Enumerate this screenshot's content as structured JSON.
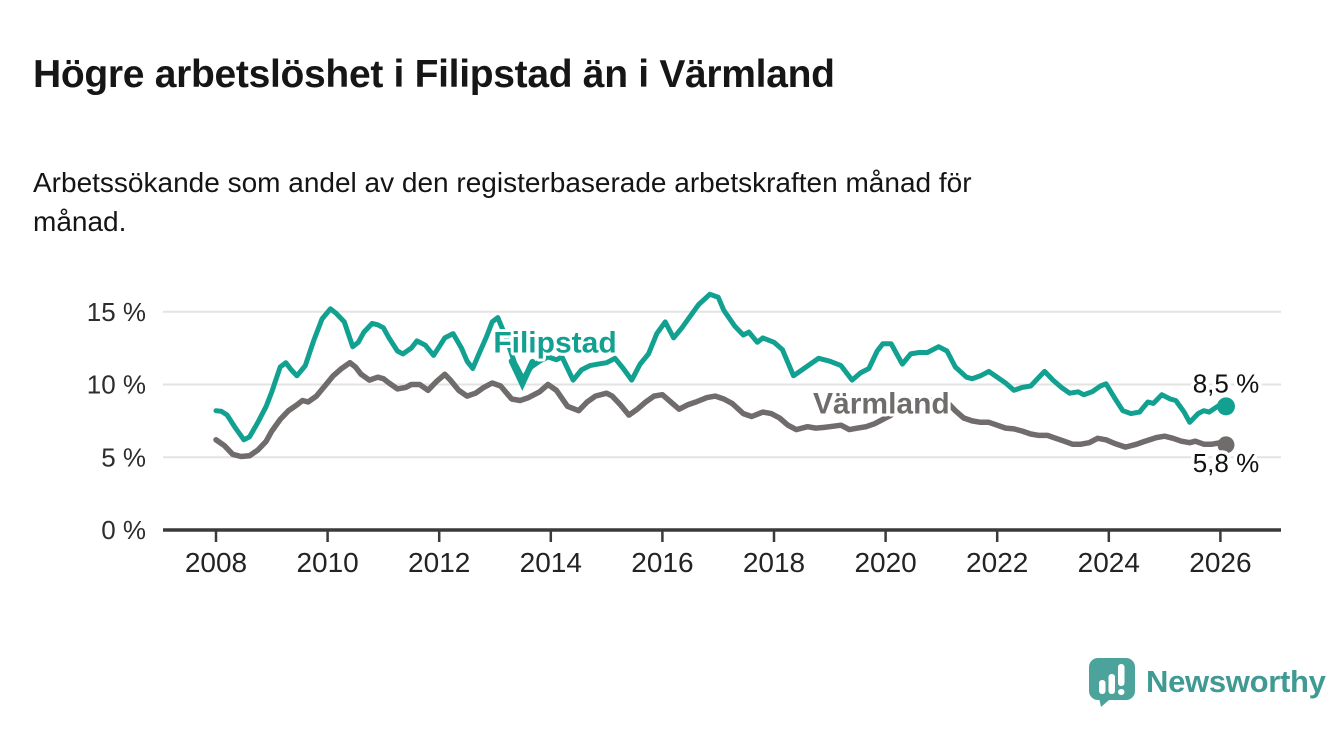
{
  "header": {
    "title": "Högre arbetslöshet i Filipstad än i Värmland",
    "subtitle": "Arbetssökande som andel av den registerbaserade arbetskraften månad för månad."
  },
  "footer": {
    "brand": "Newsworthy",
    "logo_icon": "bar-chart-speech-bubble-icon",
    "logo_color": "#4ba39c"
  },
  "colors": {
    "filipstad": "#12a091",
    "varmland": "#706c6b",
    "gridline": "#e3e3e3",
    "axis": "#3a3a3a",
    "text": "#161616"
  },
  "chart_data": {
    "type": "line",
    "title": "Högre arbetslöshet i Filipstad än i Värmland",
    "subtitle": "Arbetssökande som andel av den registerbaserade arbetskraften månad för månad.",
    "xlim": [
      2007.05,
      2027.1
    ],
    "ylim": [
      0,
      17.3
    ],
    "grid": "horizontal",
    "legend": "inline-annotations",
    "y_ticks": [
      {
        "value": 0,
        "label": "0 %"
      },
      {
        "value": 5,
        "label": "5 %"
      },
      {
        "value": 10,
        "label": "10 %"
      },
      {
        "value": 15,
        "label": "15 %"
      }
    ],
    "x_ticks": [
      {
        "value": 2008,
        "label": "2008"
      },
      {
        "value": 2010,
        "label": "2010"
      },
      {
        "value": 2012,
        "label": "2012"
      },
      {
        "value": 2014,
        "label": "2014"
      },
      {
        "value": 2016,
        "label": "2016"
      },
      {
        "value": 2018,
        "label": "2018"
      },
      {
        "value": 2020,
        "label": "2020"
      },
      {
        "value": 2022,
        "label": "2022"
      },
      {
        "value": 2024,
        "label": "2024"
      },
      {
        "value": 2026,
        "label": "2026"
      }
    ],
    "series": [
      {
        "name": "Filipstad",
        "color": "#12a091",
        "line_width": 5,
        "end_dot_radius": 9,
        "end_label": "8,5 %",
        "end_label_side": "above",
        "points": [
          [
            2008.0,
            8.2
          ],
          [
            2008.1,
            8.15
          ],
          [
            2008.2,
            7.9
          ],
          [
            2008.35,
            7.0
          ],
          [
            2008.5,
            6.2
          ],
          [
            2008.6,
            6.4
          ],
          [
            2008.75,
            7.4
          ],
          [
            2008.9,
            8.5
          ],
          [
            2009.0,
            9.5
          ],
          [
            2009.15,
            11.2
          ],
          [
            2009.25,
            11.5
          ],
          [
            2009.35,
            11.0
          ],
          [
            2009.45,
            10.6
          ],
          [
            2009.6,
            11.3
          ],
          [
            2009.75,
            13.0
          ],
          [
            2009.9,
            14.5
          ],
          [
            2010.05,
            15.2
          ],
          [
            2010.15,
            14.9
          ],
          [
            2010.3,
            14.3
          ],
          [
            2010.45,
            12.6
          ],
          [
            2010.55,
            12.9
          ],
          [
            2010.65,
            13.6
          ],
          [
            2010.8,
            14.2
          ],
          [
            2010.9,
            14.1
          ],
          [
            2011.0,
            13.9
          ],
          [
            2011.1,
            13.2
          ],
          [
            2011.25,
            12.3
          ],
          [
            2011.35,
            12.1
          ],
          [
            2011.5,
            12.5
          ],
          [
            2011.6,
            13.0
          ],
          [
            2011.75,
            12.7
          ],
          [
            2011.9,
            12.0
          ],
          [
            2012.0,
            12.6
          ],
          [
            2012.1,
            13.2
          ],
          [
            2012.25,
            13.5
          ],
          [
            2012.4,
            12.5
          ],
          [
            2012.5,
            11.6
          ],
          [
            2012.6,
            11.1
          ],
          [
            2012.7,
            12.0
          ],
          [
            2012.85,
            13.3
          ],
          [
            2012.95,
            14.3
          ],
          [
            2013.05,
            14.6
          ],
          [
            2013.2,
            13.2
          ],
          [
            2013.35,
            11.5
          ],
          [
            2013.5,
            10.4
          ],
          [
            2013.65,
            11.2
          ],
          [
            2013.8,
            11.6
          ],
          [
            2013.95,
            11.9
          ],
          [
            2014.1,
            11.7
          ],
          [
            2014.2,
            11.9
          ],
          [
            2014.4,
            10.3
          ],
          [
            2014.55,
            11.0
          ],
          [
            2014.7,
            11.3
          ],
          [
            2014.85,
            11.4
          ],
          [
            2015.0,
            11.5
          ],
          [
            2015.15,
            11.8
          ],
          [
            2015.3,
            11.1
          ],
          [
            2015.45,
            10.3
          ],
          [
            2015.6,
            11.4
          ],
          [
            2015.75,
            12.1
          ],
          [
            2015.9,
            13.5
          ],
          [
            2016.05,
            14.3
          ],
          [
            2016.2,
            13.2
          ],
          [
            2016.35,
            13.9
          ],
          [
            2016.5,
            14.7
          ],
          [
            2016.65,
            15.5
          ],
          [
            2016.85,
            16.2
          ],
          [
            2017.0,
            16.0
          ],
          [
            2017.1,
            15.1
          ],
          [
            2017.3,
            14.0
          ],
          [
            2017.45,
            13.4
          ],
          [
            2017.55,
            13.6
          ],
          [
            2017.7,
            12.9
          ],
          [
            2017.8,
            13.2
          ],
          [
            2018.0,
            12.9
          ],
          [
            2018.15,
            12.4
          ],
          [
            2018.35,
            10.6
          ],
          [
            2018.5,
            11.0
          ],
          [
            2018.65,
            11.4
          ],
          [
            2018.8,
            11.8
          ],
          [
            2019.0,
            11.6
          ],
          [
            2019.2,
            11.3
          ],
          [
            2019.4,
            10.3
          ],
          [
            2019.55,
            10.8
          ],
          [
            2019.7,
            11.1
          ],
          [
            2019.85,
            12.3
          ],
          [
            2019.95,
            12.8
          ],
          [
            2020.1,
            12.8
          ],
          [
            2020.3,
            11.4
          ],
          [
            2020.45,
            12.1
          ],
          [
            2020.6,
            12.2
          ],
          [
            2020.75,
            12.2
          ],
          [
            2020.95,
            12.6
          ],
          [
            2021.1,
            12.3
          ],
          [
            2021.25,
            11.2
          ],
          [
            2021.45,
            10.5
          ],
          [
            2021.55,
            10.4
          ],
          [
            2021.7,
            10.6
          ],
          [
            2021.85,
            10.9
          ],
          [
            2022.0,
            10.5
          ],
          [
            2022.15,
            10.1
          ],
          [
            2022.3,
            9.6
          ],
          [
            2022.45,
            9.8
          ],
          [
            2022.6,
            9.9
          ],
          [
            2022.75,
            10.5
          ],
          [
            2022.85,
            10.9
          ],
          [
            2023.0,
            10.3
          ],
          [
            2023.15,
            9.8
          ],
          [
            2023.3,
            9.4
          ],
          [
            2023.45,
            9.5
          ],
          [
            2023.55,
            9.3
          ],
          [
            2023.7,
            9.5
          ],
          [
            2023.85,
            9.9
          ],
          [
            2023.95,
            10.05
          ],
          [
            2024.1,
            9.1
          ],
          [
            2024.25,
            8.2
          ],
          [
            2024.4,
            8.0
          ],
          [
            2024.55,
            8.1
          ],
          [
            2024.7,
            8.8
          ],
          [
            2024.8,
            8.7
          ],
          [
            2024.95,
            9.3
          ],
          [
            2025.1,
            9.0
          ],
          [
            2025.2,
            8.9
          ],
          [
            2025.35,
            8.1
          ],
          [
            2025.45,
            7.4
          ],
          [
            2025.6,
            8.0
          ],
          [
            2025.7,
            8.2
          ],
          [
            2025.8,
            8.1
          ],
          [
            2025.95,
            8.5
          ],
          [
            2026.0,
            8.6
          ],
          [
            2026.1,
            8.5
          ]
        ]
      },
      {
        "name": "Värmland",
        "color": "#706c6b",
        "line_width": 5.5,
        "end_dot_radius": 8.5,
        "end_label": "5,8 %",
        "end_label_side": "below",
        "points": [
          [
            2008.0,
            6.2
          ],
          [
            2008.15,
            5.8
          ],
          [
            2008.3,
            5.2
          ],
          [
            2008.45,
            5.05
          ],
          [
            2008.6,
            5.1
          ],
          [
            2008.75,
            5.5
          ],
          [
            2008.9,
            6.1
          ],
          [
            2009.0,
            6.8
          ],
          [
            2009.15,
            7.6
          ],
          [
            2009.3,
            8.2
          ],
          [
            2009.45,
            8.6
          ],
          [
            2009.55,
            8.9
          ],
          [
            2009.65,
            8.8
          ],
          [
            2009.8,
            9.2
          ],
          [
            2009.95,
            9.9
          ],
          [
            2010.1,
            10.6
          ],
          [
            2010.25,
            11.1
          ],
          [
            2010.4,
            11.5
          ],
          [
            2010.5,
            11.2
          ],
          [
            2010.6,
            10.7
          ],
          [
            2010.75,
            10.3
          ],
          [
            2010.9,
            10.5
          ],
          [
            2011.0,
            10.4
          ],
          [
            2011.1,
            10.1
          ],
          [
            2011.25,
            9.7
          ],
          [
            2011.4,
            9.8
          ],
          [
            2011.5,
            10.0
          ],
          [
            2011.65,
            10.0
          ],
          [
            2011.8,
            9.6
          ],
          [
            2011.95,
            10.2
          ],
          [
            2012.1,
            10.7
          ],
          [
            2012.2,
            10.3
          ],
          [
            2012.35,
            9.6
          ],
          [
            2012.5,
            9.2
          ],
          [
            2012.65,
            9.4
          ],
          [
            2012.8,
            9.8
          ],
          [
            2012.95,
            10.1
          ],
          [
            2013.1,
            9.9
          ],
          [
            2013.3,
            9.0
          ],
          [
            2013.45,
            8.9
          ],
          [
            2013.6,
            9.1
          ],
          [
            2013.8,
            9.5
          ],
          [
            2013.95,
            10.0
          ],
          [
            2014.1,
            9.6
          ],
          [
            2014.3,
            8.5
          ],
          [
            2014.5,
            8.2
          ],
          [
            2014.65,
            8.8
          ],
          [
            2014.8,
            9.2
          ],
          [
            2015.0,
            9.4
          ],
          [
            2015.1,
            9.2
          ],
          [
            2015.25,
            8.6
          ],
          [
            2015.4,
            7.9
          ],
          [
            2015.55,
            8.3
          ],
          [
            2015.7,
            8.8
          ],
          [
            2015.85,
            9.2
          ],
          [
            2016.0,
            9.3
          ],
          [
            2016.15,
            8.8
          ],
          [
            2016.3,
            8.3
          ],
          [
            2016.45,
            8.6
          ],
          [
            2016.6,
            8.8
          ],
          [
            2016.8,
            9.1
          ],
          [
            2016.95,
            9.2
          ],
          [
            2017.1,
            9.0
          ],
          [
            2017.25,
            8.7
          ],
          [
            2017.45,
            8.0
          ],
          [
            2017.6,
            7.8
          ],
          [
            2017.8,
            8.1
          ],
          [
            2017.95,
            8.0
          ],
          [
            2018.1,
            7.7
          ],
          [
            2018.25,
            7.2
          ],
          [
            2018.4,
            6.9
          ],
          [
            2018.6,
            7.1
          ],
          [
            2018.75,
            7.0
          ],
          [
            2018.9,
            7.05
          ],
          [
            2019.0,
            7.1
          ],
          [
            2019.2,
            7.2
          ],
          [
            2019.35,
            6.9
          ],
          [
            2019.5,
            7.0
          ],
          [
            2019.65,
            7.1
          ],
          [
            2019.8,
            7.3
          ],
          [
            2019.95,
            7.6
          ],
          [
            2020.1,
            7.9
          ],
          [
            2020.25,
            8.5
          ],
          [
            2020.4,
            8.9
          ],
          [
            2020.55,
            9.0
          ],
          [
            2020.7,
            8.9
          ],
          [
            2020.85,
            8.9
          ],
          [
            2021.0,
            9.0
          ],
          [
            2021.1,
            8.8
          ],
          [
            2021.25,
            8.2
          ],
          [
            2021.4,
            7.7
          ],
          [
            2021.55,
            7.5
          ],
          [
            2021.7,
            7.4
          ],
          [
            2021.85,
            7.4
          ],
          [
            2022.0,
            7.2
          ],
          [
            2022.15,
            7.0
          ],
          [
            2022.3,
            6.95
          ],
          [
            2022.45,
            6.8
          ],
          [
            2022.6,
            6.6
          ],
          [
            2022.75,
            6.5
          ],
          [
            2022.9,
            6.5
          ],
          [
            2023.05,
            6.3
          ],
          [
            2023.2,
            6.1
          ],
          [
            2023.35,
            5.9
          ],
          [
            2023.5,
            5.9
          ],
          [
            2023.65,
            6.0
          ],
          [
            2023.8,
            6.3
          ],
          [
            2023.95,
            6.2
          ],
          [
            2024.1,
            5.95
          ],
          [
            2024.3,
            5.7
          ],
          [
            2024.5,
            5.9
          ],
          [
            2024.65,
            6.1
          ],
          [
            2024.85,
            6.35
          ],
          [
            2025.0,
            6.45
          ],
          [
            2025.15,
            6.3
          ],
          [
            2025.3,
            6.1
          ],
          [
            2025.45,
            6.0
          ],
          [
            2025.55,
            6.1
          ],
          [
            2025.7,
            5.9
          ],
          [
            2025.85,
            5.9
          ],
          [
            2026.0,
            6.0
          ],
          [
            2026.1,
            5.85
          ]
        ]
      }
    ],
    "annotations": [
      {
        "text": "Filipstad",
        "series": "Filipstad",
        "color": "#12a091",
        "x": 2012.97,
        "y": 12.2,
        "anchor": "start",
        "arrow": [
          [
            2013.3,
            11.6
          ],
          [
            2013.49,
            10.05
          ],
          [
            2013.67,
            11.55
          ]
        ]
      },
      {
        "text": "Värmland",
        "series": "Värmland",
        "color": "#6f6c6b",
        "x": 2018.7,
        "y": 8.0,
        "anchor": "start",
        "arrow": null
      }
    ],
    "end_labels": [
      {
        "text": "8,5 %",
        "x": 2026.1,
        "y": 9.45,
        "series": "Filipstad"
      },
      {
        "text": "5,8 %",
        "x": 2026.1,
        "y": 4.0,
        "series": "Värmland"
      }
    ]
  }
}
